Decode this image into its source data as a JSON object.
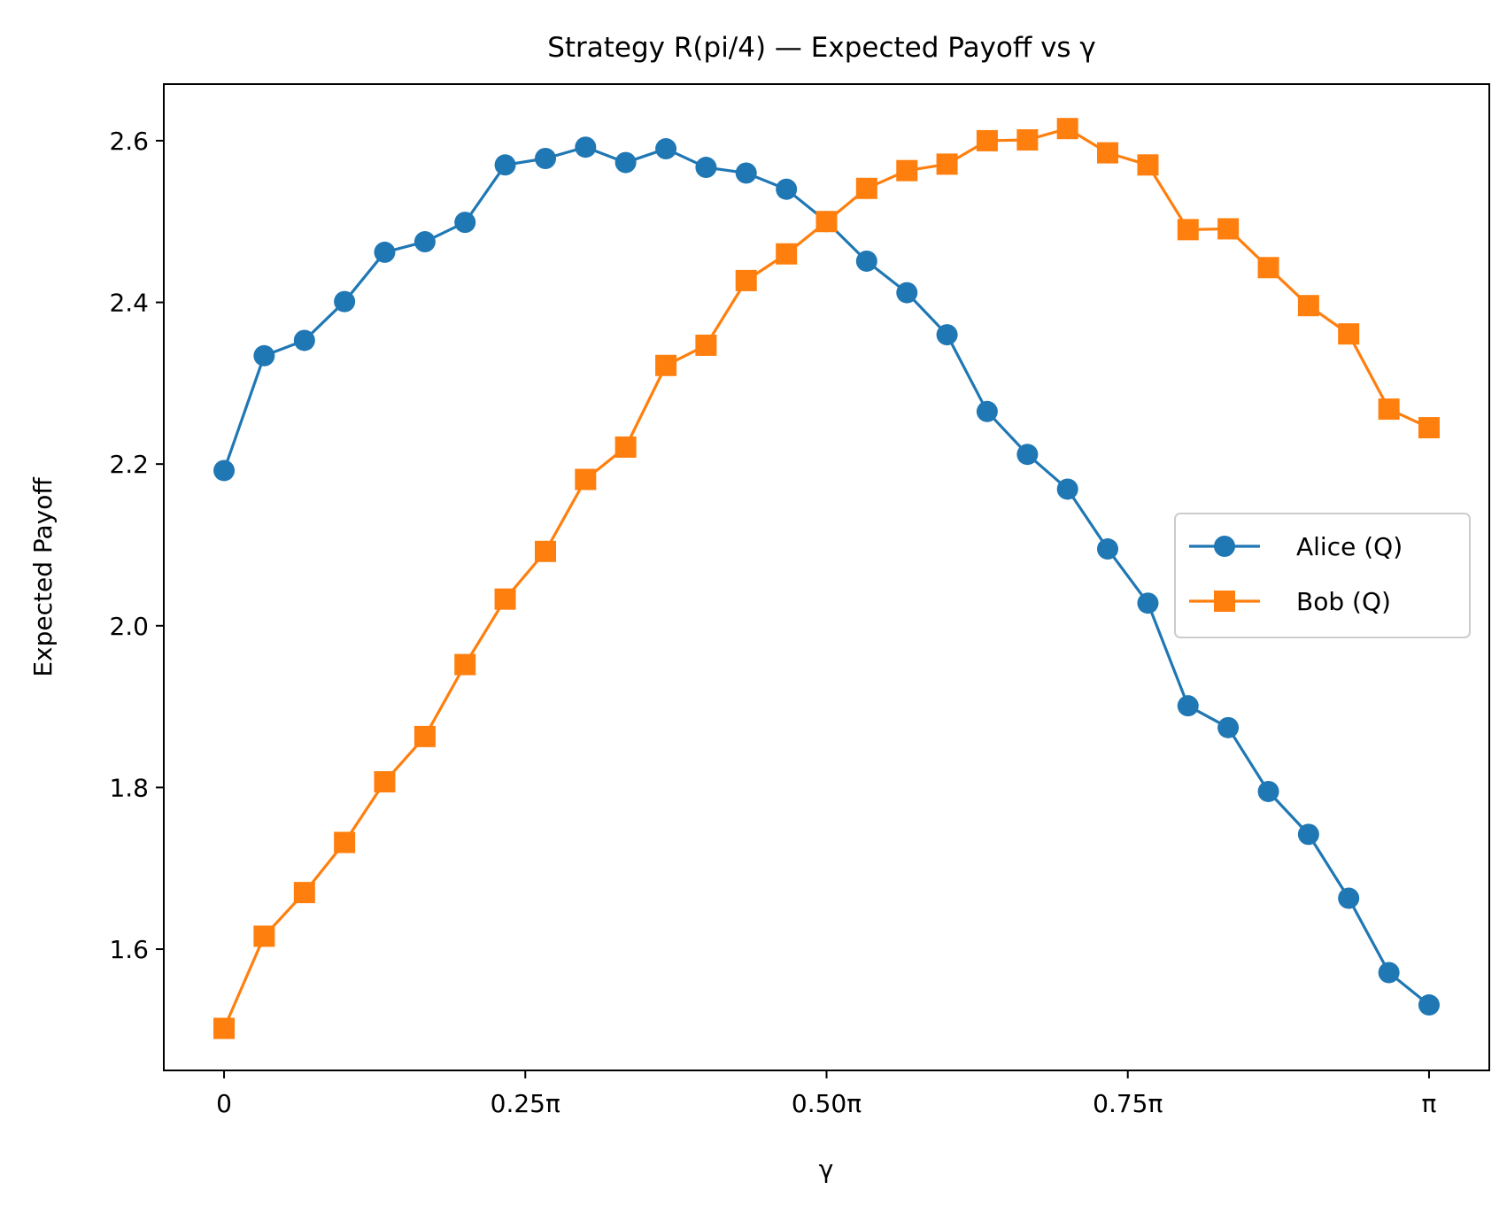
{
  "chart_data": {
    "type": "line",
    "title": "Strategy R(pi/4) — Expected Payoff vs γ",
    "xlabel": "γ",
    "ylabel": "Expected Payoff",
    "x_unit": "fraction of π",
    "xlim": [
      -0.05,
      1.05
    ],
    "ylim": [
      1.45,
      2.67
    ],
    "xticks": [
      {
        "value": 0,
        "label": "0"
      },
      {
        "value": 0.25,
        "label": "0.25π"
      },
      {
        "value": 0.5,
        "label": "0.50π"
      },
      {
        "value": 0.75,
        "label": "0.75π"
      },
      {
        "value": 1,
        "label": "π"
      }
    ],
    "yticks": [
      {
        "value": 1.6,
        "label": "1.6"
      },
      {
        "value": 1.8,
        "label": "1.8"
      },
      {
        "value": 2.0,
        "label": "2.0"
      },
      {
        "value": 2.2,
        "label": "2.2"
      },
      {
        "value": 2.4,
        "label": "2.4"
      },
      {
        "value": 2.6,
        "label": "2.6"
      }
    ],
    "grid": false,
    "legend_position": "center-right",
    "x": [
      0,
      0.0333,
      0.0667,
      0.1,
      0.1333,
      0.1667,
      0.2,
      0.2333,
      0.2667,
      0.3,
      0.3333,
      0.3667,
      0.4,
      0.4333,
      0.4667,
      0.5,
      0.5333,
      0.5667,
      0.6,
      0.6333,
      0.6667,
      0.7,
      0.7333,
      0.7667,
      0.8,
      0.8333,
      0.8667,
      0.9,
      0.9333,
      0.9667,
      1.0
    ],
    "series": [
      {
        "name": "Alice (Q)",
        "color": "#1f77b4",
        "marker": "circle",
        "values": [
          2.192,
          2.334,
          2.353,
          2.401,
          2.462,
          2.475,
          2.499,
          2.57,
          2.578,
          2.592,
          2.573,
          2.59,
          2.567,
          2.56,
          2.54,
          2.5,
          2.451,
          2.412,
          2.36,
          2.265,
          2.212,
          2.169,
          2.095,
          2.028,
          1.901,
          1.874,
          1.795,
          1.742,
          1.663,
          1.571,
          1.531
        ]
      },
      {
        "name": "Bob (Q)",
        "color": "#ff7f0e",
        "marker": "square",
        "values": [
          1.502,
          1.616,
          1.67,
          1.732,
          1.807,
          1.863,
          1.952,
          2.033,
          2.092,
          2.181,
          2.221,
          2.322,
          2.347,
          2.427,
          2.46,
          2.5,
          2.541,
          2.563,
          2.571,
          2.6,
          2.601,
          2.615,
          2.585,
          2.57,
          2.49,
          2.491,
          2.443,
          2.396,
          2.361,
          2.268,
          2.245
        ]
      }
    ]
  }
}
